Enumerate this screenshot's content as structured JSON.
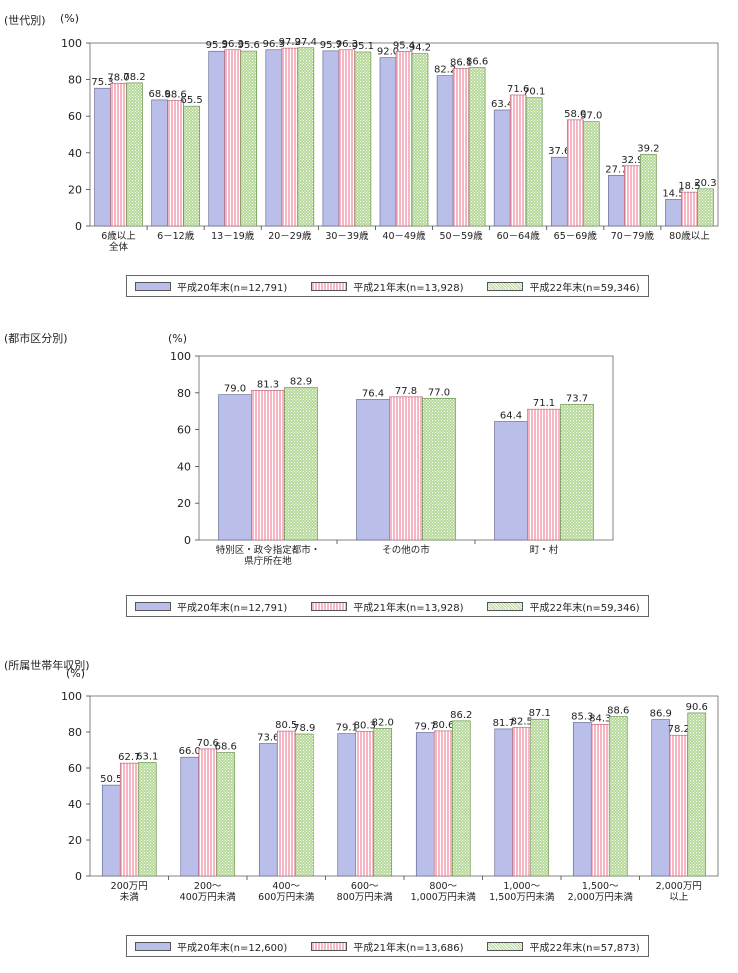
{
  "chart_data": [
    {
      "type": "bar",
      "section_title": "(世代別)",
      "ylabel": "(%)",
      "ylim": [
        0,
        100
      ],
      "yticks": [
        0,
        20,
        40,
        60,
        80,
        100
      ],
      "categories": [
        "6歳以上\n全体",
        "6－12歳",
        "13－19歳",
        "20－29歳",
        "30－39歳",
        "40－49歳",
        "50－59歳",
        "60－64歳",
        "65－69歳",
        "70－79歳",
        "80歳以上"
      ],
      "series": [
        {
          "name": "平成20年末(n=12,791)",
          "values": [
            75.3,
            68.9,
            95.5,
            96.3,
            95.7,
            92.0,
            82.2,
            63.4,
            37.6,
            27.7,
            14.5
          ]
        },
        {
          "name": "平成21年末(n=13,928)",
          "values": [
            78.0,
            68.6,
            96.3,
            97.2,
            96.3,
            95.4,
            86.1,
            71.6,
            58.0,
            32.9,
            18.5
          ]
        },
        {
          "name": "平成22年末(n=59,346)",
          "values": [
            78.2,
            65.5,
            95.6,
            97.4,
            95.1,
            94.2,
            86.6,
            70.1,
            57.0,
            39.2,
            20.3
          ]
        }
      ],
      "legend_position": "bottom"
    },
    {
      "type": "bar",
      "section_title": "(都市区分別)",
      "ylabel": "(%)",
      "ylim": [
        0,
        100
      ],
      "yticks": [
        0,
        20,
        40,
        60,
        80,
        100
      ],
      "categories": [
        "特別区・政令指定都市・\n県庁所在地",
        "その他の市",
        "町・村"
      ],
      "series": [
        {
          "name": "平成20年末(n=12,791)",
          "values": [
            79.0,
            76.4,
            64.4
          ]
        },
        {
          "name": "平成21年末(n=13,928)",
          "values": [
            81.3,
            77.8,
            71.1
          ]
        },
        {
          "name": "平成22年末(n=59,346)",
          "values": [
            82.9,
            77.0,
            73.7
          ]
        }
      ],
      "legend_position": "bottom"
    },
    {
      "type": "bar",
      "section_title": "(所属世帯年収別)",
      "ylabel": "(%)",
      "ylim": [
        0,
        100
      ],
      "yticks": [
        0,
        20,
        40,
        60,
        80,
        100
      ],
      "categories": [
        "200万円\n未満",
        "200～\n400万円未満",
        "400～\n600万円未満",
        "600～\n800万円未満",
        "800～\n1,000万円未満",
        "1,000～\n1,500万円未満",
        "1,500～\n2,000万円未満",
        "2,000万円\n以上"
      ],
      "series": [
        {
          "name": "平成20年末(n=12,600)",
          "values": [
            50.5,
            66.0,
            73.6,
            79.1,
            79.7,
            81.7,
            85.3,
            86.9
          ]
        },
        {
          "name": "平成21年末(n=13,686)",
          "values": [
            62.7,
            70.6,
            80.5,
            80.3,
            80.6,
            82.5,
            84.3,
            78.2
          ]
        },
        {
          "name": "平成22年末(n=57,873)",
          "values": [
            63.1,
            68.6,
            78.9,
            82.0,
            86.2,
            87.1,
            88.6,
            90.6
          ]
        }
      ],
      "legend_position": "bottom"
    }
  ],
  "colors": {
    "series_fill": [
      "#b9bfe8",
      "#f7b6c3",
      "#b6d99a"
    ],
    "series_stroke": [
      "#5a5f8c",
      "#b05a6d",
      "#5f8c44"
    ],
    "axis": "#444444"
  }
}
